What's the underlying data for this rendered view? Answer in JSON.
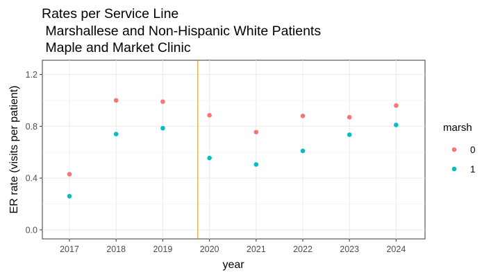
{
  "chart_data": {
    "type": "scatter",
    "title_lines": [
      "Rates per Service Line",
      " Marshallese and Non-Hispanic White Patients",
      " Maple and Market Clinic"
    ],
    "xlabel": "year",
    "ylabel": "ER rate (visits per patient)",
    "x_ticks": [
      "2017",
      "2018",
      "2019",
      "2020",
      "2021",
      "2022",
      "2023",
      "2024"
    ],
    "y_ticks": [
      "0.0",
      "0.4",
      "0.8",
      "1.2"
    ],
    "ylim": [
      -0.07,
      1.31
    ],
    "grid": true,
    "legend": {
      "title": "marsh",
      "position": "right"
    },
    "series": [
      {
        "name": "0",
        "color": "#f8766d",
        "x": [
          "2017",
          "2018",
          "2019",
          "2020",
          "2021",
          "2022",
          "2023",
          "2024"
        ],
        "y": [
          0.43,
          1.0,
          0.99,
          0.885,
          0.755,
          0.88,
          0.87,
          0.96
        ]
      },
      {
        "name": "1",
        "color": "#00bfc4",
        "x": [
          "2017",
          "2018",
          "2019",
          "2020",
          "2021",
          "2022",
          "2023",
          "2024"
        ],
        "y": [
          0.26,
          0.74,
          0.785,
          0.555,
          0.505,
          0.61,
          0.735,
          0.81
        ]
      }
    ],
    "vline": {
      "position": "between 2019 and 2020",
      "color": "#daa520"
    }
  }
}
